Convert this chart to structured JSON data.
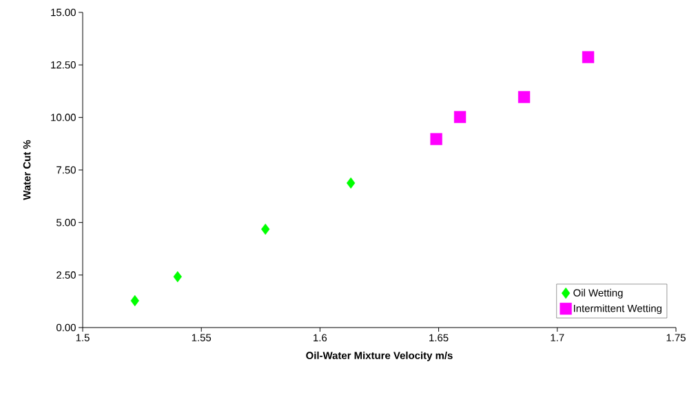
{
  "chart_data": {
    "type": "scatter",
    "xlabel": "Oil-Water Mixture Velocity   m/s",
    "ylabel": "Water Cut   %",
    "xlim": [
      1.5,
      1.75
    ],
    "xticks": [
      1.5,
      1.55,
      1.6,
      1.65,
      1.7,
      1.75
    ],
    "ylim": [
      0,
      15
    ],
    "yticks": [
      {
        "value": 0,
        "label": "0.00"
      },
      {
        "value": 2.5,
        "label": "2.50"
      },
      {
        "value": 5,
        "label": "5.00"
      },
      {
        "value": 7.5,
        "label": "7.50"
      },
      {
        "value": 10,
        "label": "10.00"
      },
      {
        "value": 12.5,
        "label": "12.50"
      },
      {
        "value": 15,
        "label": "15.00"
      }
    ],
    "grid": false,
    "legend": "bottom right",
    "series": [
      {
        "name": "Oil Wetting",
        "color": "#00ff00",
        "marker": "diamond",
        "x": [
          1.522,
          1.54,
          1.577,
          1.613
        ],
        "values": [
          1.28,
          2.42,
          4.68,
          6.88
        ]
      },
      {
        "name": "Intermittent Wetting",
        "color": "#ff00ff",
        "marker": "square",
        "x": [
          1.649,
          1.659,
          1.686,
          1.713
        ],
        "values": [
          8.97,
          10.02,
          10.97,
          12.87
        ]
      }
    ]
  }
}
